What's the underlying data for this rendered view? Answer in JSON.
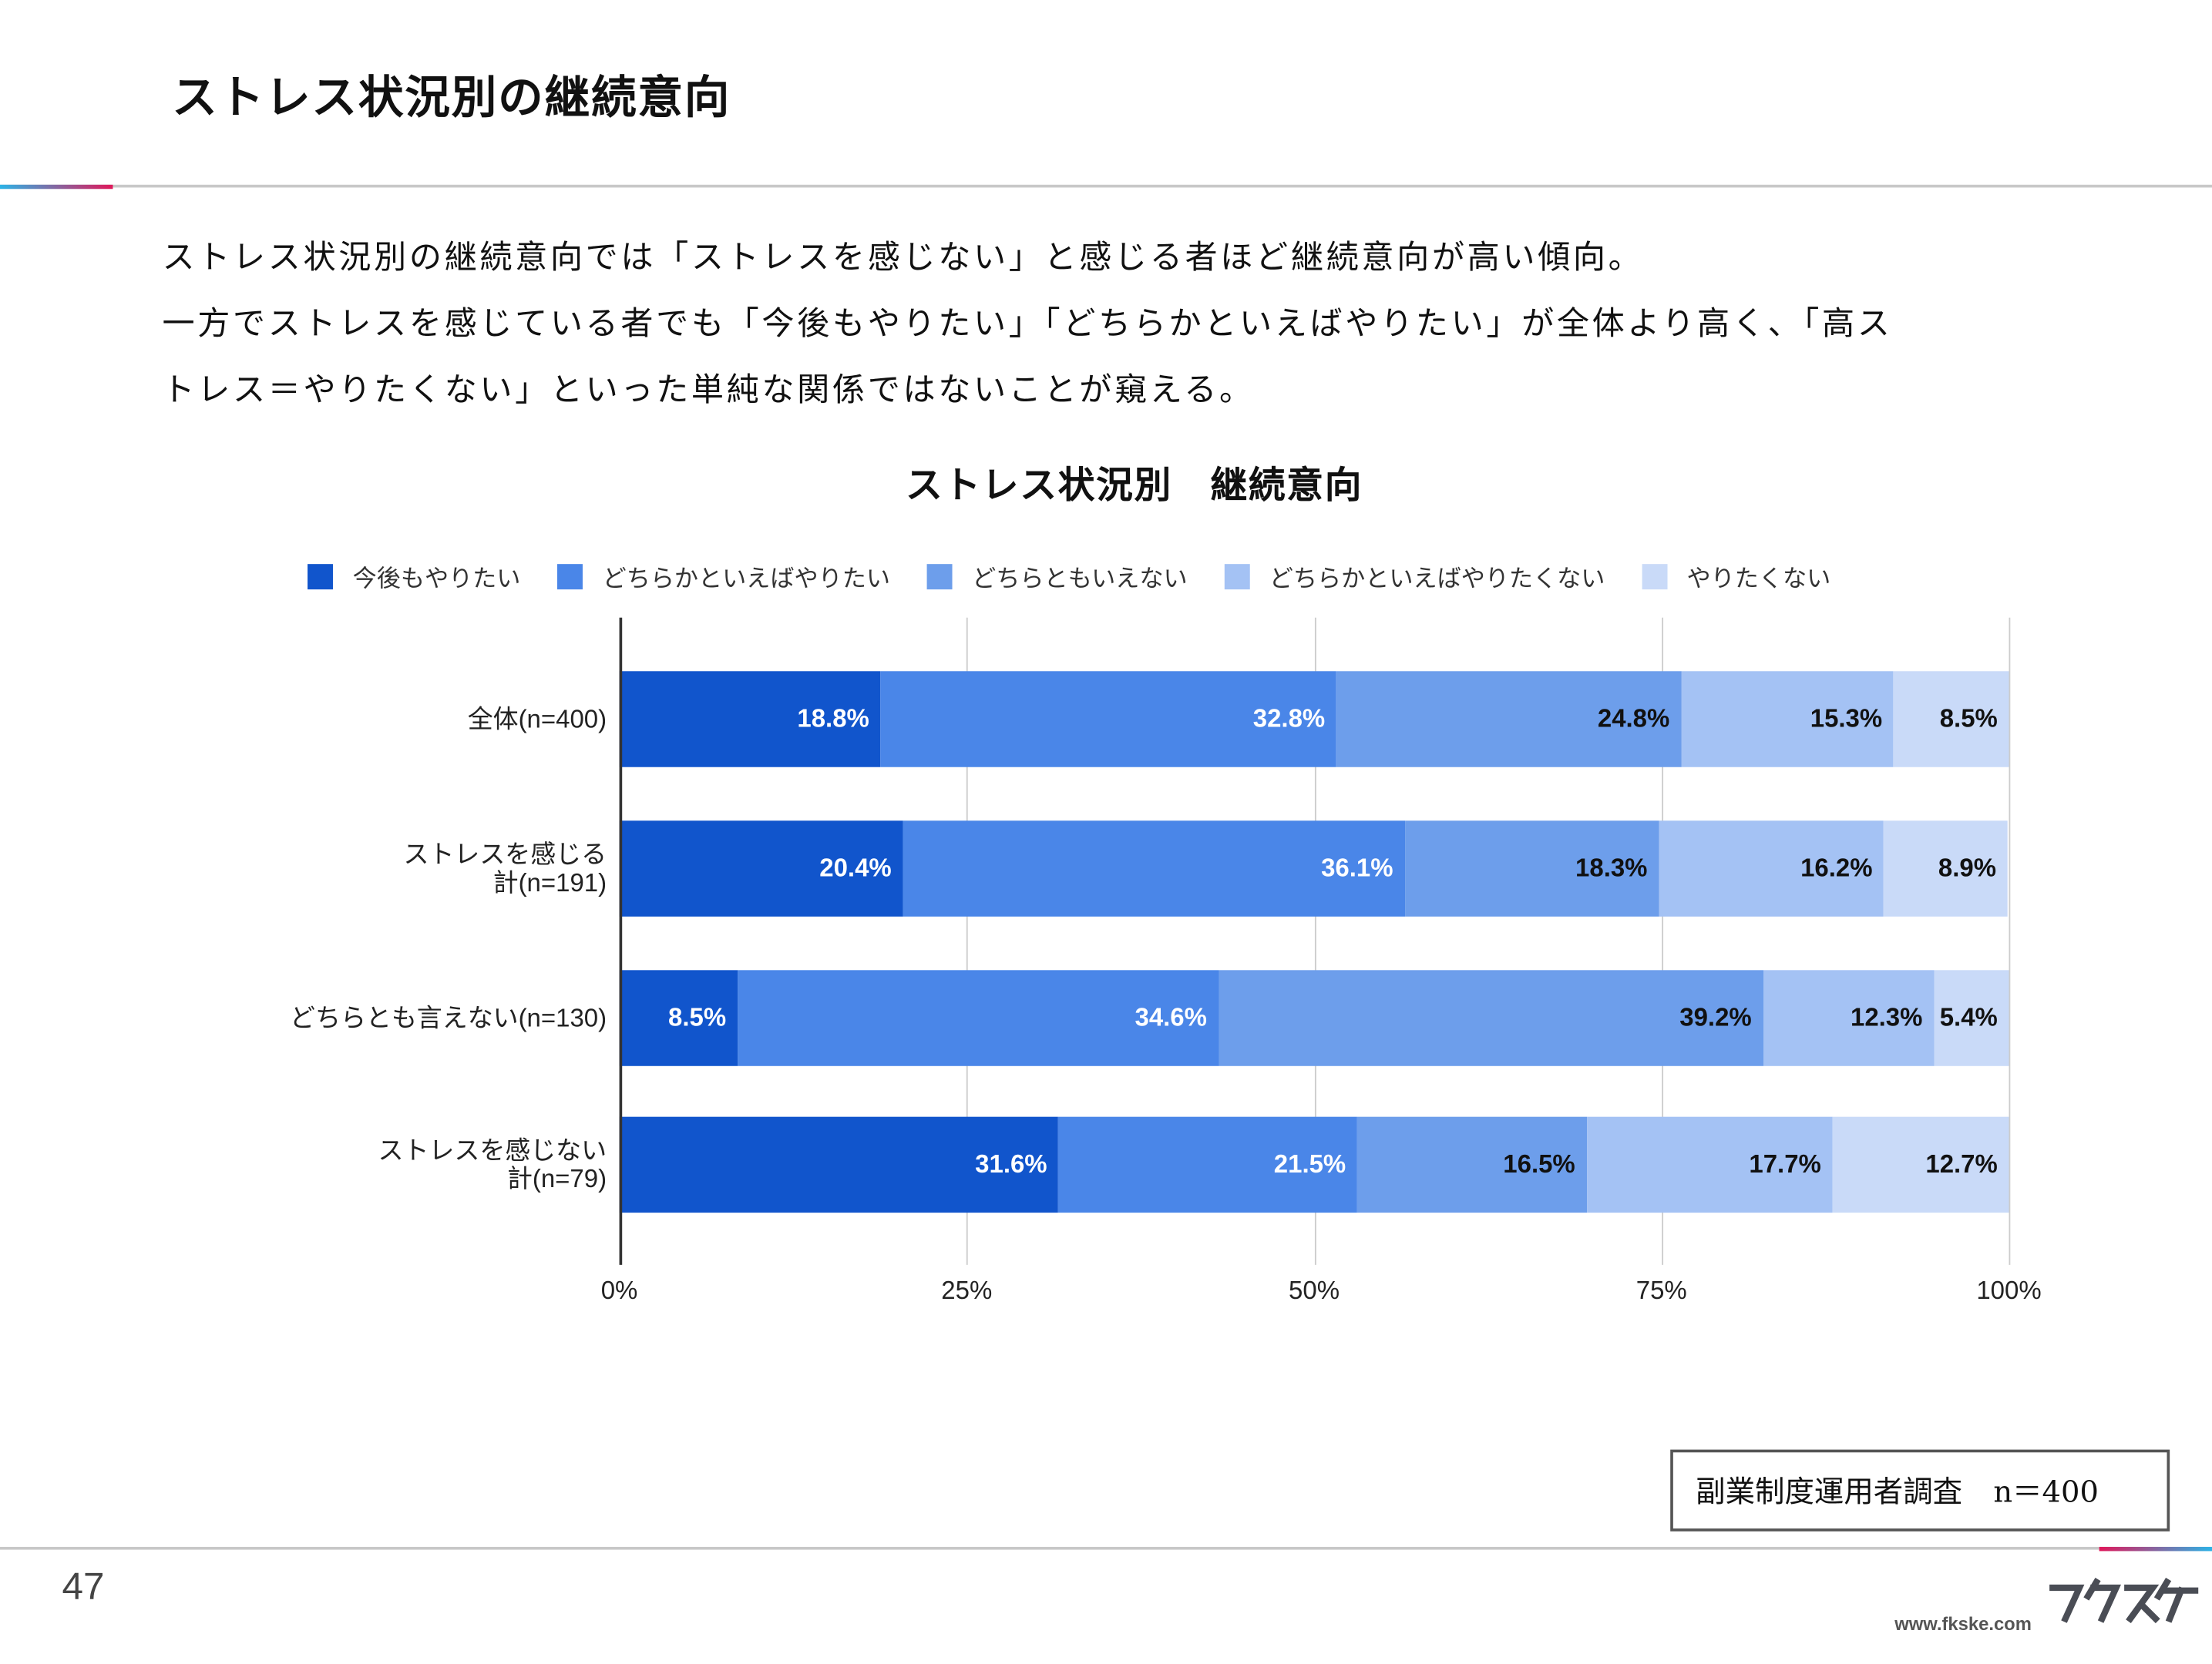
{
  "header": {
    "title": "ストレス状況別の継続意向"
  },
  "description": [
    "ストレス状況別の継続意向では「ストレスを感じない」と感じる者ほど継続意向が高い傾向。",
    "一方でストレスを感じている者でも「今後もやりたい」「どちらかといえばやりたい」が全体より高く、「高ス",
    "トレス＝やりたくない」といった単純な関係ではないことが窺える。"
  ],
  "chart_data": {
    "type": "bar",
    "orientation": "horizontal",
    "stacked": "100%",
    "title": "ストレス状況別　継続意向",
    "categories": [
      "全体(n=400)",
      "ストレスを感じる\n計(n=191)",
      "どちらとも言えない(n=130)",
      "ストレスを感じない\n計(n=79)"
    ],
    "series": [
      {
        "name": "今後もやりたい",
        "color": "#1155cc",
        "label_color": "#ffffff",
        "values": [
          18.8,
          20.4,
          8.5,
          31.6
        ]
      },
      {
        "name": "どちらかといえばやりたい",
        "color": "#4a86e8",
        "label_color": "#ffffff",
        "values": [
          32.8,
          36.1,
          34.6,
          21.5
        ]
      },
      {
        "name": "どちらともいえない",
        "color": "#6d9eeb",
        "label_color": "#111111",
        "values": [
          24.8,
          18.3,
          39.2,
          16.5
        ]
      },
      {
        "name": "どちらかといえばやりたくない",
        "color": "#a4c2f4",
        "label_color": "#111111",
        "values": [
          15.3,
          16.2,
          12.3,
          17.7
        ]
      },
      {
        "name": "やりたくない",
        "color": "#c9daf8",
        "label_color": "#111111",
        "values": [
          8.5,
          8.9,
          5.4,
          12.7
        ]
      }
    ],
    "xlim": [
      0,
      100
    ],
    "xticks": [
      "0%",
      "25%",
      "50%",
      "75%",
      "100%"
    ],
    "grid": true,
    "legend": "top"
  },
  "source": {
    "label": "副業制度運用者調査",
    "n": "n＝400"
  },
  "footer": {
    "page": "47",
    "url": "www.fkske.com",
    "logo_text": "フクスケ"
  }
}
